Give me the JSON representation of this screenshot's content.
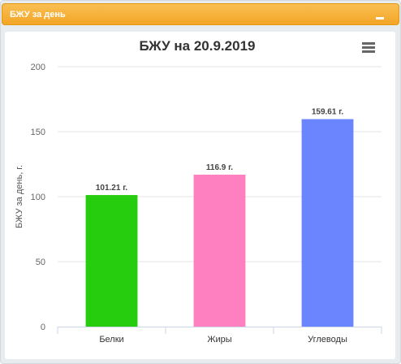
{
  "panel": {
    "title": "БЖУ за день",
    "collapse_icon": "minus-icon"
  },
  "menu": {
    "icon": "hamburger-menu-icon"
  },
  "chart_data": {
    "type": "bar",
    "title": "БЖУ на 20.9.2019",
    "ylabel": "БЖУ за день, г.",
    "xlabel": "",
    "categories": [
      "Белки",
      "Жиры",
      "Углеводы"
    ],
    "values": [
      101.21,
      116.9,
      159.61
    ],
    "data_labels": [
      "101.21 г.",
      "116.9 г.",
      "159.61 г."
    ],
    "colors": [
      "#26cc0e",
      "#ff80c0",
      "#6b85ff"
    ],
    "ylim": [
      0,
      200
    ],
    "yticks": [
      0,
      50,
      100,
      150,
      200
    ],
    "grid": true,
    "legend": "none"
  }
}
